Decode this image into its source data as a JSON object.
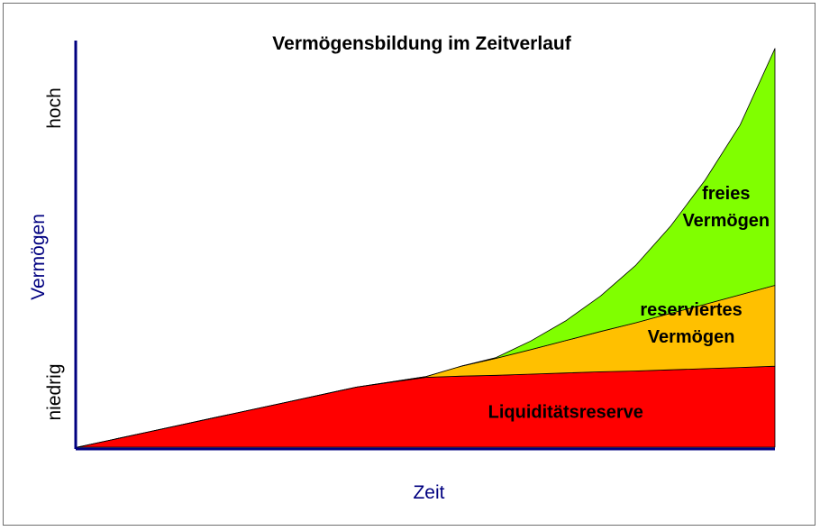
{
  "chart_data": {
    "type": "area",
    "title": "Vermögensbildung im Zeitverlauf",
    "xlabel": "Zeit",
    "ylabel": "Vermögen",
    "y_tick_labels": {
      "low": "niedrig",
      "high": "hoch"
    },
    "stacked": true,
    "xlim": [
      0,
      10
    ],
    "ylim": [
      0,
      10.3
    ],
    "grid": false,
    "legend": "none",
    "x": [
      0,
      1,
      2,
      3,
      4,
      5,
      5.5,
      6,
      6.5,
      7,
      7.5,
      8,
      8.5,
      9,
      9.5,
      10
    ],
    "series": [
      {
        "name": "Liquiditätsreserve",
        "label_lines": [
          "Liquiditätsreserve"
        ],
        "label_at": [
          7,
          0.9
        ],
        "color": "#ff0000",
        "values": [
          0,
          0.38,
          0.76,
          1.14,
          1.52,
          1.77,
          1.8,
          1.82,
          1.85,
          1.88,
          1.91,
          1.93,
          1.96,
          1.99,
          2.02,
          2.05
        ]
      },
      {
        "name": "reserviertes Vermögen",
        "label_lines": [
          "reserviertes",
          "Vermögen"
        ],
        "label_at": [
          8.8,
          3.15
        ],
        "color": "#ffc000",
        "values": [
          0,
          0,
          0,
          0,
          0,
          0.02,
          0.25,
          0.43,
          0.62,
          0.82,
          1.02,
          1.22,
          1.43,
          1.63,
          1.84,
          2.05
        ]
      },
      {
        "name": "freies Vermögen",
        "label_lines": [
          "freies",
          "Vermögen"
        ],
        "label_at": [
          9.3,
          6.1
        ],
        "color": "#80ff00",
        "values": [
          0,
          0,
          0,
          0,
          0,
          0,
          0,
          0.02,
          0.22,
          0.5,
          0.9,
          1.45,
          2.2,
          3.15,
          4.3,
          6.0
        ]
      }
    ]
  }
}
